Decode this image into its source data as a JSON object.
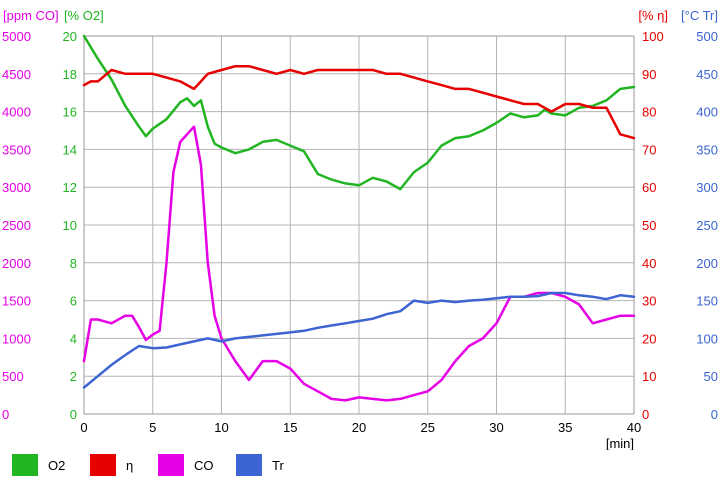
{
  "chart_data": {
    "type": "line",
    "x_axis": {
      "label": "[min]",
      "ticks": [
        "0",
        "5",
        "10",
        "15",
        "20",
        "25",
        "30",
        "35",
        "40"
      ],
      "range": [
        0,
        40
      ]
    },
    "y_axes": [
      {
        "id": "co",
        "label": "[ppm CO]",
        "color": "#e600e6",
        "range": [
          0,
          5000
        ],
        "ticks": [
          "0",
          "500",
          "1000",
          "1500",
          "2000",
          "2500",
          "3000",
          "3500",
          "4000",
          "4500",
          "5000"
        ]
      },
      {
        "id": "o2",
        "label": "[% O2]",
        "color": "#22b522",
        "range": [
          0,
          20
        ],
        "ticks": [
          "0",
          "2",
          "4",
          "6",
          "8",
          "10",
          "12",
          "14",
          "16",
          "18",
          "20"
        ]
      },
      {
        "id": "eta",
        "label": "[% η]",
        "color": "#e60000",
        "range": [
          0,
          100
        ],
        "ticks": [
          "0",
          "10",
          "20",
          "30",
          "40",
          "50",
          "60",
          "70",
          "80",
          "90",
          "100"
        ]
      },
      {
        "id": "tr",
        "label": "[°C Tr]",
        "color": "#3c64d2",
        "range": [
          0,
          500
        ],
        "ticks": [
          "0",
          "50",
          "100",
          "150",
          "200",
          "250",
          "300",
          "350",
          "400",
          "450",
          "500"
        ]
      }
    ],
    "grid": true,
    "legend_position": "bottom-left",
    "series": [
      {
        "name": "O2",
        "axis": "o2",
        "color": "#22b522",
        "x": [
          0,
          1,
          2,
          3,
          4,
          4.5,
          5,
          6,
          7,
          7.5,
          8,
          8.5,
          9,
          9.5,
          10,
          11,
          12,
          13,
          14,
          15,
          16,
          17,
          18,
          19,
          20,
          21,
          22,
          23,
          24,
          25,
          26,
          27,
          28,
          29,
          30,
          31,
          32,
          33,
          33.5,
          34,
          35,
          36,
          37,
          38,
          39,
          40
        ],
        "y": [
          20,
          18.8,
          17.7,
          16.3,
          15.2,
          14.7,
          15.1,
          15.6,
          16.5,
          16.7,
          16.3,
          16.6,
          15.2,
          14.3,
          14.1,
          13.8,
          14.0,
          14.4,
          14.5,
          14.2,
          13.9,
          12.7,
          12.4,
          12.2,
          12.1,
          12.5,
          12.3,
          11.9,
          12.8,
          13.3,
          14.2,
          14.6,
          14.7,
          15.0,
          15.4,
          15.9,
          15.7,
          15.8,
          16.1,
          15.9,
          15.8,
          16.2,
          16.3,
          16.6,
          17.2,
          17.3
        ]
      },
      {
        "name": "η",
        "axis": "eta",
        "color": "#e60000",
        "x": [
          0,
          0.5,
          1,
          2,
          3,
          4,
          5,
          6,
          7,
          8,
          8.5,
          9,
          10,
          11,
          12,
          13,
          14,
          15,
          16,
          17,
          18,
          19,
          20,
          21,
          22,
          23,
          24,
          25,
          26,
          27,
          28,
          29,
          30,
          31,
          32,
          33,
          33.5,
          34,
          35,
          36,
          37,
          38,
          39,
          40
        ],
        "y": [
          87,
          88,
          88,
          91,
          90,
          90,
          90,
          89,
          88,
          86,
          88,
          90,
          91,
          92,
          92,
          91,
          90,
          91,
          90,
          91,
          91,
          91,
          91,
          91,
          90,
          90,
          89,
          88,
          87,
          86,
          86,
          85,
          84,
          83,
          82,
          82,
          81,
          80,
          82,
          82,
          81,
          81,
          74,
          73
        ]
      },
      {
        "name": "CO",
        "axis": "co",
        "color": "#e600e6",
        "x": [
          0,
          0.5,
          1,
          2,
          3,
          3.5,
          4,
          4.5,
          5,
          5.5,
          6,
          6.5,
          7,
          7.5,
          8,
          8.5,
          9,
          9.5,
          10,
          11,
          12,
          13,
          14,
          15,
          16,
          17,
          18,
          19,
          20,
          21,
          22,
          23,
          24,
          25,
          26,
          27,
          28,
          29,
          30,
          31,
          32,
          33,
          34,
          35,
          36,
          37,
          38,
          39,
          40
        ],
        "y": [
          700,
          1250,
          1250,
          1200,
          1300,
          1300,
          1150,
          980,
          1050,
          1100,
          2000,
          3200,
          3600,
          3700,
          3800,
          3300,
          2000,
          1300,
          1000,
          700,
          450,
          700,
          700,
          600,
          400,
          300,
          200,
          180,
          220,
          200,
          180,
          200,
          250,
          300,
          450,
          700,
          900,
          1000,
          1200,
          1550,
          1550,
          1600,
          1600,
          1550,
          1450,
          1200,
          1250,
          1300,
          1300
        ]
      },
      {
        "name": "Tr",
        "axis": "tr",
        "color": "#3c64d2",
        "x": [
          0,
          1,
          2,
          3,
          4,
          5,
          6,
          7,
          8,
          9,
          10,
          11,
          12,
          13,
          14,
          15,
          16,
          17,
          18,
          19,
          20,
          21,
          22,
          23,
          24,
          25,
          26,
          27,
          28,
          29,
          30,
          31,
          32,
          33,
          34,
          35,
          36,
          37,
          38,
          39,
          40
        ],
        "y": [
          35,
          50,
          65,
          78,
          90,
          87,
          88,
          92,
          96,
          100,
          96,
          100,
          102,
          104,
          106,
          108,
          110,
          114,
          117,
          120,
          123,
          126,
          132,
          136,
          150,
          147,
          150,
          148,
          150,
          151,
          153,
          155,
          155,
          156,
          160,
          160,
          157,
          155,
          152,
          157,
          155
        ]
      }
    ]
  }
}
